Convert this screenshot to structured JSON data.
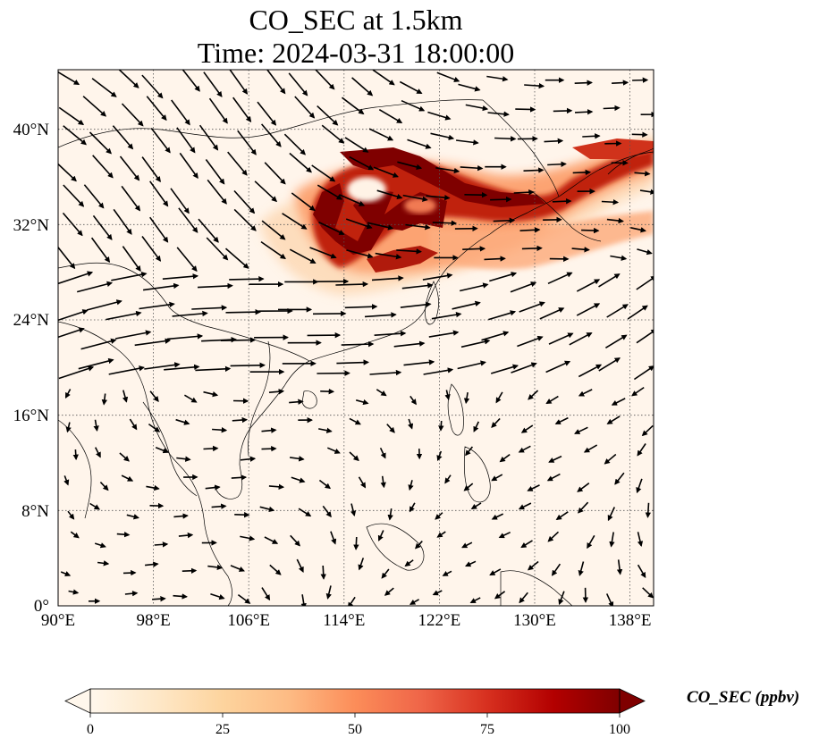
{
  "title": {
    "line1": "CO_SEC at 1.5km",
    "line2": "Time: 2024-03-31 18:00:00"
  },
  "map": {
    "lon_range": [
      90,
      140
    ],
    "lat_range": [
      0,
      45
    ],
    "lon_ticks": [
      "90°E",
      "98°E",
      "106°E",
      "114°E",
      "122°E",
      "130°E",
      "138°E"
    ],
    "lat_ticks": [
      "0°",
      "8°N",
      "16°N",
      "24°N",
      "32°N",
      "40°N"
    ],
    "gridlines": true,
    "overlay": "wind vectors",
    "background_color": "#fff5eb"
  },
  "colorbar": {
    "label": "CO_SEC (ppbv)",
    "ticks": [
      "0",
      "25",
      "50",
      "75",
      "100"
    ],
    "range": [
      0,
      100
    ],
    "extend": "both",
    "colormap": "OrRd",
    "colors": [
      "#fff7ec",
      "#fee8c8",
      "#fdd49e",
      "#fdbb84",
      "#fc8d59",
      "#ef6548",
      "#d7301f",
      "#b30000",
      "#7f0000"
    ]
  }
}
